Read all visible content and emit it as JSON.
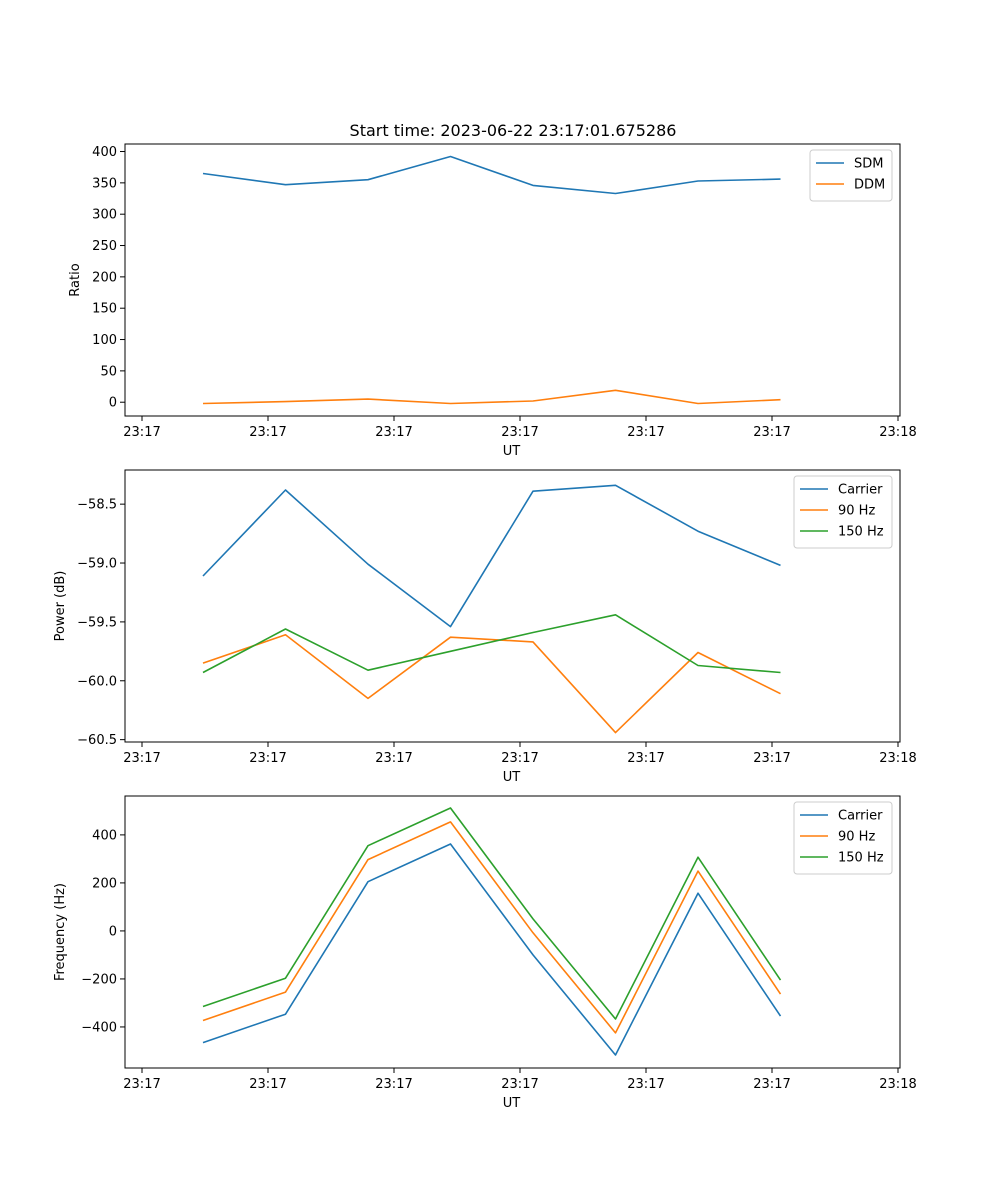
{
  "figure": {
    "title": "Start time: 2023-06-22 23:17:01.675286"
  },
  "chart_data": [
    {
      "type": "line",
      "xlabel": "UT",
      "ylabel": "Ratio",
      "x_tick_labels": [
        "23:17",
        "23:17",
        "23:17",
        "23:17",
        "23:17",
        "23:17",
        "23:18"
      ],
      "y_ticks": [
        0,
        50,
        100,
        150,
        200,
        250,
        300,
        350,
        400
      ],
      "ylim": [
        -22,
        412
      ],
      "x_points": 8,
      "legend_position": "top-right",
      "series": [
        {
          "name": "SDM",
          "color": "#1f77b4",
          "values": [
            365,
            347,
            355,
            392,
            346,
            333,
            353,
            356
          ]
        },
        {
          "name": "DDM",
          "color": "#ff7f0e",
          "values": [
            -2,
            1,
            5,
            -2,
            2,
            19,
            -2,
            4
          ]
        }
      ]
    },
    {
      "type": "line",
      "xlabel": "UT",
      "ylabel": "Power (dB)",
      "x_tick_labels": [
        "23:17",
        "23:17",
        "23:17",
        "23:17",
        "23:17",
        "23:17",
        "23:18"
      ],
      "y_ticks": [
        -58.5,
        -59.0,
        -59.5,
        -60.0,
        -60.5
      ],
      "y_tick_labels": [
        "−58.5",
        "−59.0",
        "−59.5",
        "−60.0",
        "−60.5"
      ],
      "ylim": [
        -60.52,
        -58.21
      ],
      "x_points": 8,
      "legend_position": "top-right",
      "series": [
        {
          "name": "Carrier",
          "color": "#1f77b4",
          "values": [
            -59.11,
            -58.38,
            -59.01,
            -59.54,
            -58.39,
            -58.34,
            -58.73,
            -59.02
          ]
        },
        {
          "name": "90 Hz",
          "color": "#ff7f0e",
          "values": [
            -59.85,
            -59.61,
            -60.15,
            -59.63,
            -59.67,
            -60.44,
            -59.76,
            -60.11
          ]
        },
        {
          "name": "150 Hz",
          "color": "#2ca02c",
          "values": [
            -59.93,
            -59.56,
            -59.91,
            -59.75,
            -59.59,
            -59.44,
            -59.87,
            -59.93
          ]
        }
      ]
    },
    {
      "type": "line",
      "xlabel": "UT",
      "ylabel": "Frequency (Hz)",
      "x_tick_labels": [
        "23:17",
        "23:17",
        "23:17",
        "23:17",
        "23:17",
        "23:17",
        "23:18"
      ],
      "y_ticks": [
        -400,
        -200,
        0,
        200,
        400
      ],
      "y_tick_labels": [
        "−400",
        "−200",
        "0",
        "200",
        "400"
      ],
      "ylim": [
        -571,
        562
      ],
      "x_points": 8,
      "legend_position": "top-right",
      "series": [
        {
          "name": "Carrier",
          "color": "#1f77b4",
          "values": [
            -465,
            -347,
            205,
            362,
            -100,
            -517,
            157,
            -355
          ]
        },
        {
          "name": "90 Hz",
          "color": "#ff7f0e",
          "values": [
            -373,
            -255,
            297,
            454,
            -8,
            -425,
            249,
            -263
          ]
        },
        {
          "name": "150 Hz",
          "color": "#2ca02c",
          "values": [
            -315,
            -197,
            355,
            512,
            50,
            -367,
            307,
            -205
          ]
        }
      ]
    }
  ]
}
